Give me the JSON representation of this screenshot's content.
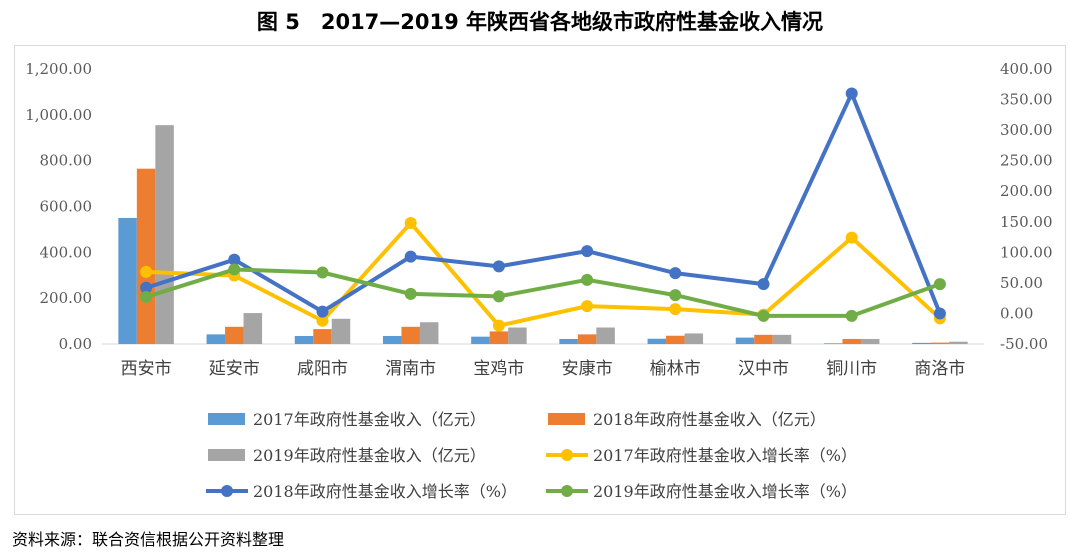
{
  "title": "图 5　2017—2019 年陕西省各地级市政府性基金收入情况",
  "source": "资料来源：联合资信根据公开资料整理",
  "chart_data": {
    "type": "bar",
    "categories": [
      "西安市",
      "延安市",
      "咸阳市",
      "渭南市",
      "宝鸡市",
      "安康市",
      "榆林市",
      "汉中市",
      "铜川市",
      "商洛市"
    ],
    "y_left": {
      "ylim": [
        0,
        1200
      ],
      "ticks": [
        "0.00",
        "200.00",
        "400.00",
        "600.00",
        "800.00",
        "1,000.00",
        "1,200.00"
      ]
    },
    "y_right": {
      "ylim": [
        -50,
        400
      ],
      "ticks": [
        "-50.00",
        "0.00",
        "50.00",
        "100.00",
        "150.00",
        "200.00",
        "250.00",
        "300.00",
        "350.00",
        "400.00"
      ]
    },
    "bar_series": [
      {
        "name": "2017年政府性基金收入（亿元）",
        "color": "#5b9bd5",
        "values": [
          550,
          42,
          35,
          35,
          32,
          22,
          23,
          28,
          3,
          5
        ]
      },
      {
        "name": "2018年政府性基金收入（亿元）",
        "color": "#ed7d31",
        "values": [
          765,
          75,
          65,
          75,
          55,
          42,
          36,
          40,
          22,
          6
        ]
      },
      {
        "name": "2019年政府性基金收入（亿元）",
        "color": "#a5a5a5",
        "values": [
          955,
          135,
          110,
          95,
          72,
          72,
          46,
          40,
          22,
          10
        ]
      }
    ],
    "line_series": [
      {
        "name": "2017年政府性基金收入增长率（%）",
        "color": "#ffc000",
        "values": [
          68,
          62,
          -12,
          148,
          -20,
          12,
          7,
          -2,
          124,
          -8
        ]
      },
      {
        "name": "2018年政府性基金收入增长率（%）",
        "color": "#4472c4",
        "values": [
          42,
          88,
          3,
          93,
          77,
          102,
          66,
          48,
          360,
          0
        ]
      },
      {
        "name": "2019年政府性基金收入增长率（%）",
        "color": "#70ad47",
        "values": [
          27,
          72,
          67,
          32,
          28,
          55,
          30,
          -4,
          -4,
          48
        ]
      }
    ],
    "legend_position": "bottom"
  }
}
